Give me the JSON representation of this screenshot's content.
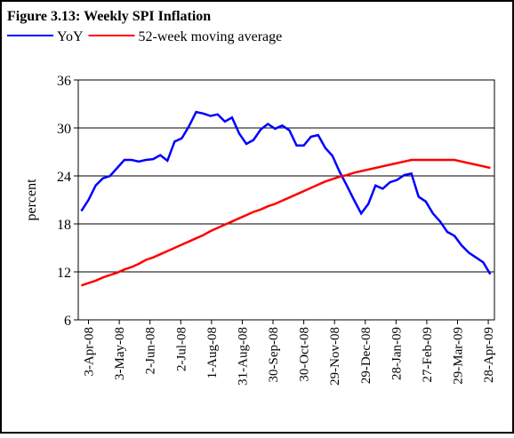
{
  "chart_data": {
    "type": "line",
    "title": "Figure 3.13: Weekly SPI Inflation",
    "ylabel": "percent",
    "x": [
      "2008-03-27",
      "2008-04-03",
      "2008-04-10",
      "2008-04-17",
      "2008-04-24",
      "2008-05-01",
      "2008-05-08",
      "2008-05-15",
      "2008-05-22",
      "2008-05-29",
      "2008-06-05",
      "2008-06-12",
      "2008-06-19",
      "2008-06-26",
      "2008-07-03",
      "2008-07-10",
      "2008-07-17",
      "2008-07-24",
      "2008-07-31",
      "2008-08-07",
      "2008-08-14",
      "2008-08-21",
      "2008-08-28",
      "2008-09-04",
      "2008-09-11",
      "2008-09-18",
      "2008-09-25",
      "2008-10-02",
      "2008-10-09",
      "2008-10-16",
      "2008-10-23",
      "2008-10-30",
      "2008-11-06",
      "2008-11-13",
      "2008-11-20",
      "2008-11-27",
      "2008-12-04",
      "2008-12-11",
      "2008-12-18",
      "2008-12-25",
      "2009-01-01",
      "2009-01-08",
      "2009-01-15",
      "2009-01-22",
      "2009-01-29",
      "2009-02-05",
      "2009-02-12",
      "2009-02-19",
      "2009-02-26",
      "2009-03-05",
      "2009-03-12",
      "2009-03-19",
      "2009-03-26",
      "2009-04-02",
      "2009-04-09",
      "2009-04-16",
      "2009-04-23",
      "2009-04-30"
    ],
    "series": [
      {
        "name": "YoY",
        "color": "#0000ff",
        "values": [
          19.6,
          21.0,
          22.8,
          23.7,
          24.0,
          25.0,
          26.0,
          26.0,
          25.8,
          26.0,
          26.1,
          26.6,
          25.9,
          28.3,
          28.7,
          30.2,
          32.0,
          31.8,
          31.5,
          31.7,
          30.8,
          31.3,
          29.3,
          28.0,
          28.5,
          29.8,
          30.5,
          29.9,
          30.3,
          29.7,
          27.8,
          27.8,
          28.9,
          29.1,
          27.5,
          26.5,
          24.5,
          22.8,
          21.0,
          19.3,
          20.5,
          22.8,
          22.4,
          23.2,
          23.5,
          24.1,
          24.3,
          21.4,
          20.8,
          19.3,
          18.3,
          17.0,
          16.5,
          15.3,
          14.4,
          13.8,
          13.2,
          11.7
        ]
      },
      {
        "name": "52-week moving average",
        "color": "#ff0000",
        "values": [
          10.3,
          10.6,
          10.9,
          11.3,
          11.6,
          11.9,
          12.3,
          12.6,
          13.0,
          13.5,
          13.8,
          14.2,
          14.6,
          15.0,
          15.4,
          15.8,
          16.2,
          16.6,
          17.1,
          17.5,
          17.9,
          18.3,
          18.7,
          19.1,
          19.5,
          19.8,
          20.2,
          20.5,
          20.9,
          21.3,
          21.7,
          22.1,
          22.5,
          22.9,
          23.3,
          23.6,
          23.9,
          24.1,
          24.4,
          24.6,
          24.8,
          25.0,
          25.2,
          25.4,
          25.6,
          25.8,
          26.0,
          26.0,
          26.0,
          26.0,
          26.0,
          26.0,
          26.0,
          25.8,
          25.6,
          25.4,
          25.2,
          25.0
        ]
      }
    ],
    "xlim": [
      "2008-03-24",
      "2009-05-04"
    ],
    "xticks": [
      {
        "value": "2008-04-03",
        "label": "3-Apr-08"
      },
      {
        "value": "2008-05-03",
        "label": "3-May-08"
      },
      {
        "value": "2008-06-02",
        "label": "2-Jun-08"
      },
      {
        "value": "2008-07-02",
        "label": "2-Jul-08"
      },
      {
        "value": "2008-08-01",
        "label": "1-Aug-08"
      },
      {
        "value": "2008-08-31",
        "label": "31-Aug-08"
      },
      {
        "value": "2008-09-30",
        "label": "30-Sep-08"
      },
      {
        "value": "2008-10-30",
        "label": "30-Oct-08"
      },
      {
        "value": "2008-11-29",
        "label": "29-Nov-08"
      },
      {
        "value": "2008-12-29",
        "label": "29-Dec-08"
      },
      {
        "value": "2009-01-28",
        "label": "28-Jan-09"
      },
      {
        "value": "2009-02-27",
        "label": "27-Feb-09"
      },
      {
        "value": "2009-03-29",
        "label": "29-Mar-09"
      },
      {
        "value": "2009-04-28",
        "label": "28-Apr-09"
      }
    ],
    "ylim": [
      6,
      36
    ],
    "yticks": [
      6,
      12,
      18,
      24,
      30,
      36
    ],
    "grid": true
  }
}
